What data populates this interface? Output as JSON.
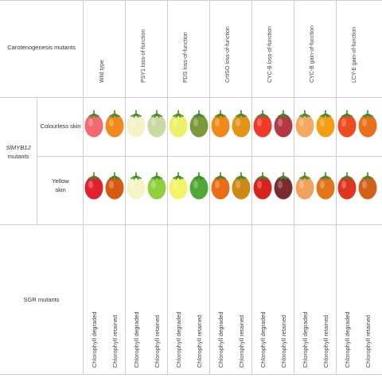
{
  "header": {
    "row_label": "Carotenogenesis mutants",
    "columns": [
      "Wild type",
      "PSY1 loss-of-function",
      "PDS loss-of-function",
      "CrtISO loss-of-function",
      "CYC-B loss-of-function",
      "CYC-B gain-of-function",
      "LCY-E gain-of-function"
    ]
  },
  "left": {
    "group_label_line1": "SlMYB12",
    "group_label_line2": "mutants",
    "rows": [
      {
        "label_line1": "Colourless skin",
        "label_line2": ""
      },
      {
        "label_line1": "Yellow",
        "label_line2": "skin"
      }
    ],
    "sgr_label": "SGR mutants"
  },
  "sgr_labels": [
    "Chlorophyll degraded",
    "Chlorophyll retained",
    "Chlorophyll degraded",
    "Chlorophyll retained",
    "Chlorophyll degraded",
    "Chlorophyll retained",
    "Chlorophyll degraded",
    "Chlorophyll retained",
    "Chlorophyll degraded",
    "Chlorophyll retained",
    "Chlorophyll degraded",
    "Chlorophyll retained",
    "Chlorophyll degraded",
    "Chlorophyll retained"
  ],
  "fruit_colors": {
    "colourless_row": [
      "#f26a6e",
      "#f08a1c",
      "#f6f2c8",
      "#cad9a2",
      "#eaf067",
      "#7a9a3a",
      "#ef8a18",
      "#e29418",
      "#ee3a26",
      "#b23a44",
      "#f4a860",
      "#f39e14",
      "#ef4a20",
      "#e8701a"
    ],
    "yellow_row": [
      "#e3202e",
      "#d75a12",
      "#f4f4c4",
      "#8fd03c",
      "#f2f464",
      "#4eaa34",
      "#e96c16",
      "#cc8a14",
      "#d8231c",
      "#7b2a2e",
      "#f0a25c",
      "#e2741a",
      "#e0341e",
      "#d2621a"
    ]
  },
  "stem_color": "#3f8a2a"
}
